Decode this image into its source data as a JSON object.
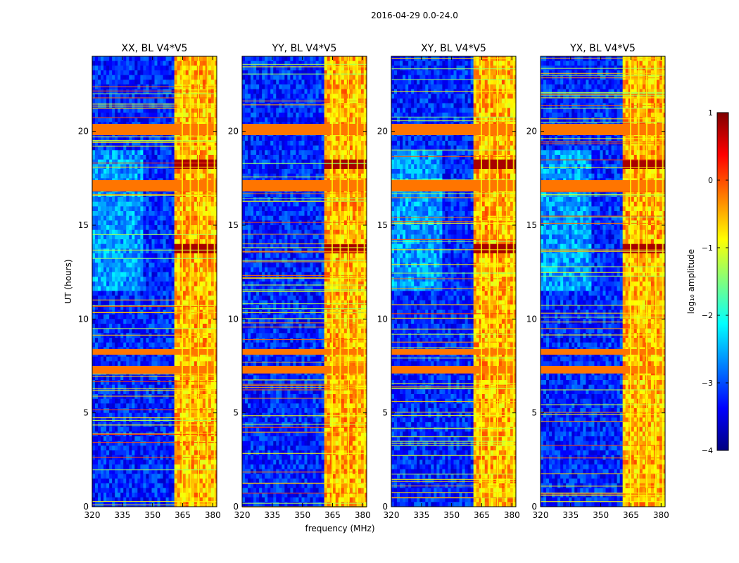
{
  "figure": {
    "suptitle": "2016-04-29 0.0-24.0",
    "xlabel": "frequency (MHz)",
    "ylabel": "UT (hours)"
  },
  "chart_data": {
    "type": "heatmap",
    "panels": [
      {
        "title": "XX, BL V4*V5",
        "polarization": "XX"
      },
      {
        "title": "YY, BL V4*V5",
        "polarization": "YY"
      },
      {
        "title": "XY, BL V4*V5",
        "polarization": "XY"
      },
      {
        "title": "YX, BL V4*V5",
        "polarization": "YX"
      }
    ],
    "x": {
      "label": "frequency (MHz)",
      "range": [
        320,
        382
      ],
      "ticks": [
        320,
        335,
        350,
        365,
        380
      ]
    },
    "y": {
      "label": "UT (hours)",
      "range": [
        0,
        24
      ],
      "ticks": [
        0,
        5,
        10,
        15,
        20
      ]
    },
    "colorbar": {
      "label": "log₁₀ amplitude",
      "range": [
        -4,
        1
      ],
      "ticks": [
        -4,
        -3,
        -2,
        -1,
        0,
        1
      ],
      "tick_labels": [
        "−4",
        "−3",
        "−2",
        "−1",
        "0",
        "1"
      ],
      "colormap": "jet",
      "colors": [
        "#00007f",
        "#0000ff",
        "#007fff",
        "#00ffff",
        "#7fff7f",
        "#ffff00",
        "#ff7f00",
        "#ff0000",
        "#7f0000"
      ]
    },
    "features": {
      "background_level": -3.2,
      "high_band_mhz": [
        361,
        382
      ],
      "high_band_level": -0.5,
      "rfi_bands_ut": [
        [
          19.8,
          20.4
        ],
        [
          16.8,
          17.4
        ],
        [
          7.1,
          7.5
        ],
        [
          8.1,
          8.4
        ]
      ],
      "rfi_level": -0.2,
      "strong_events_ut": [
        [
          13.4,
          14.0
        ],
        [
          17.9,
          18.5
        ]
      ],
      "strong_event_level": 0.8
    }
  }
}
